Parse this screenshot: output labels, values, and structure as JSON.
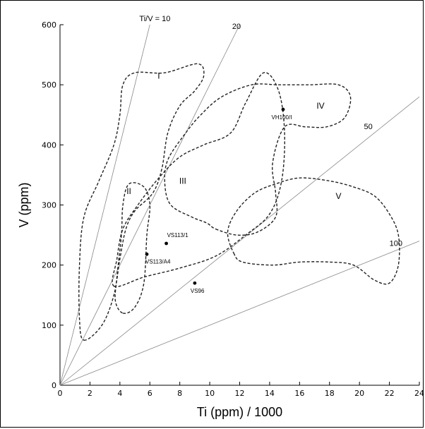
{
  "chart_data": {
    "type": "scatter",
    "title": "",
    "xlabel": "Ti (ppm) / 1000",
    "ylabel": "V (ppm)",
    "xlim": [
      0,
      24
    ],
    "ylim": [
      0,
      600
    ],
    "xticks": [
      0,
      2,
      4,
      6,
      8,
      10,
      12,
      14,
      16,
      18,
      20,
      22,
      24
    ],
    "yticks": [
      0,
      100,
      200,
      300,
      400,
      500,
      600
    ],
    "grid": false,
    "reference_lines": [
      {
        "label": "Ti/V = 10",
        "ratio": 10
      },
      {
        "label": "20",
        "ratio": 20
      },
      {
        "label": "50",
        "ratio": 50
      },
      {
        "label": "100",
        "ratio": 100
      }
    ],
    "fields": [
      {
        "label": "I",
        "label_pos": [
          6.6,
          510
        ],
        "outline": [
          [
            1.6,
            75
          ],
          [
            2.8,
            100
          ],
          [
            3.6,
            150
          ],
          [
            4.0,
            210
          ],
          [
            4.4,
            260
          ],
          [
            5.0,
            290
          ],
          [
            6.2,
            320
          ],
          [
            6.8,
            360
          ],
          [
            7.2,
            420
          ],
          [
            8.0,
            465
          ],
          [
            9.0,
            490
          ],
          [
            9.6,
            515
          ],
          [
            9.2,
            535
          ],
          [
            7.0,
            520
          ],
          [
            5.0,
            520
          ],
          [
            4.2,
            500
          ],
          [
            4.0,
            450
          ],
          [
            3.6,
            400
          ],
          [
            2.6,
            340
          ],
          [
            1.6,
            280
          ],
          [
            1.3,
            200
          ],
          [
            1.3,
            110
          ]
        ]
      },
      {
        "label": "II",
        "label_pos": [
          4.6,
          318
        ],
        "outline": [
          [
            4.2,
            120
          ],
          [
            5.0,
            130
          ],
          [
            5.6,
            170
          ],
          [
            5.8,
            250
          ],
          [
            6.0,
            300
          ],
          [
            5.6,
            330
          ],
          [
            4.6,
            335
          ],
          [
            4.2,
            300
          ],
          [
            4.1,
            250
          ],
          [
            3.8,
            180
          ],
          [
            3.7,
            140
          ]
        ]
      },
      {
        "label": "III",
        "label_pos": [
          8.2,
          335
        ],
        "outline": [
          [
            3.6,
            165
          ],
          [
            5.6,
            180
          ],
          [
            8.0,
            195
          ],
          [
            10.4,
            215
          ],
          [
            12.4,
            250
          ],
          [
            14.0,
            285
          ],
          [
            14.8,
            340
          ],
          [
            15.0,
            420
          ],
          [
            14.6,
            490
          ],
          [
            13.6,
            520
          ],
          [
            12.4,
            470
          ],
          [
            11.4,
            420
          ],
          [
            9.6,
            400
          ],
          [
            8.0,
            380
          ],
          [
            6.6,
            345
          ],
          [
            5.2,
            300
          ],
          [
            4.2,
            260
          ],
          [
            3.8,
            210
          ]
        ]
      },
      {
        "label": "IV",
        "label_pos": [
          17.4,
          460
        ],
        "outline": [
          [
            10.4,
            260
          ],
          [
            11.8,
            250
          ],
          [
            13.2,
            255
          ],
          [
            14.4,
            280
          ],
          [
            14.4,
            320
          ],
          [
            14.2,
            370
          ],
          [
            15.0,
            430
          ],
          [
            16.4,
            430
          ],
          [
            17.8,
            430
          ],
          [
            19.0,
            445
          ],
          [
            19.4,
            480
          ],
          [
            18.6,
            500
          ],
          [
            16.6,
            500
          ],
          [
            14.6,
            500
          ],
          [
            12.8,
            500
          ],
          [
            10.8,
            480
          ],
          [
            9.4,
            450
          ],
          [
            8.4,
            420
          ],
          [
            7.2,
            375
          ],
          [
            7.0,
            335
          ],
          [
            7.4,
            300
          ],
          [
            8.8,
            280
          ],
          [
            9.8,
            270
          ]
        ]
      },
      {
        "label": "V",
        "label_pos": [
          18.6,
          310
        ],
        "outline": [
          [
            11.6,
            220
          ],
          [
            12.2,
            205
          ],
          [
            14.2,
            200
          ],
          [
            16.0,
            205
          ],
          [
            18.0,
            205
          ],
          [
            19.6,
            200
          ],
          [
            21.0,
            175
          ],
          [
            22.0,
            170
          ],
          [
            22.6,
            200
          ],
          [
            22.6,
            250
          ],
          [
            22.0,
            285
          ],
          [
            21.0,
            315
          ],
          [
            19.6,
            330
          ],
          [
            18.0,
            340
          ],
          [
            16.0,
            345
          ],
          [
            14.4,
            335
          ],
          [
            13.0,
            320
          ],
          [
            11.8,
            290
          ],
          [
            11.2,
            255
          ]
        ]
      }
    ],
    "samples": [
      {
        "label": "VH100/I",
        "x": 14.9,
        "y": 459
      },
      {
        "label": "VS113/1",
        "x": 7.1,
        "y": 236
      },
      {
        "label": "VS113/A4",
        "x": 5.8,
        "y": 218
      },
      {
        "label": "VS96",
        "x": 9.0,
        "y": 170
      }
    ]
  }
}
